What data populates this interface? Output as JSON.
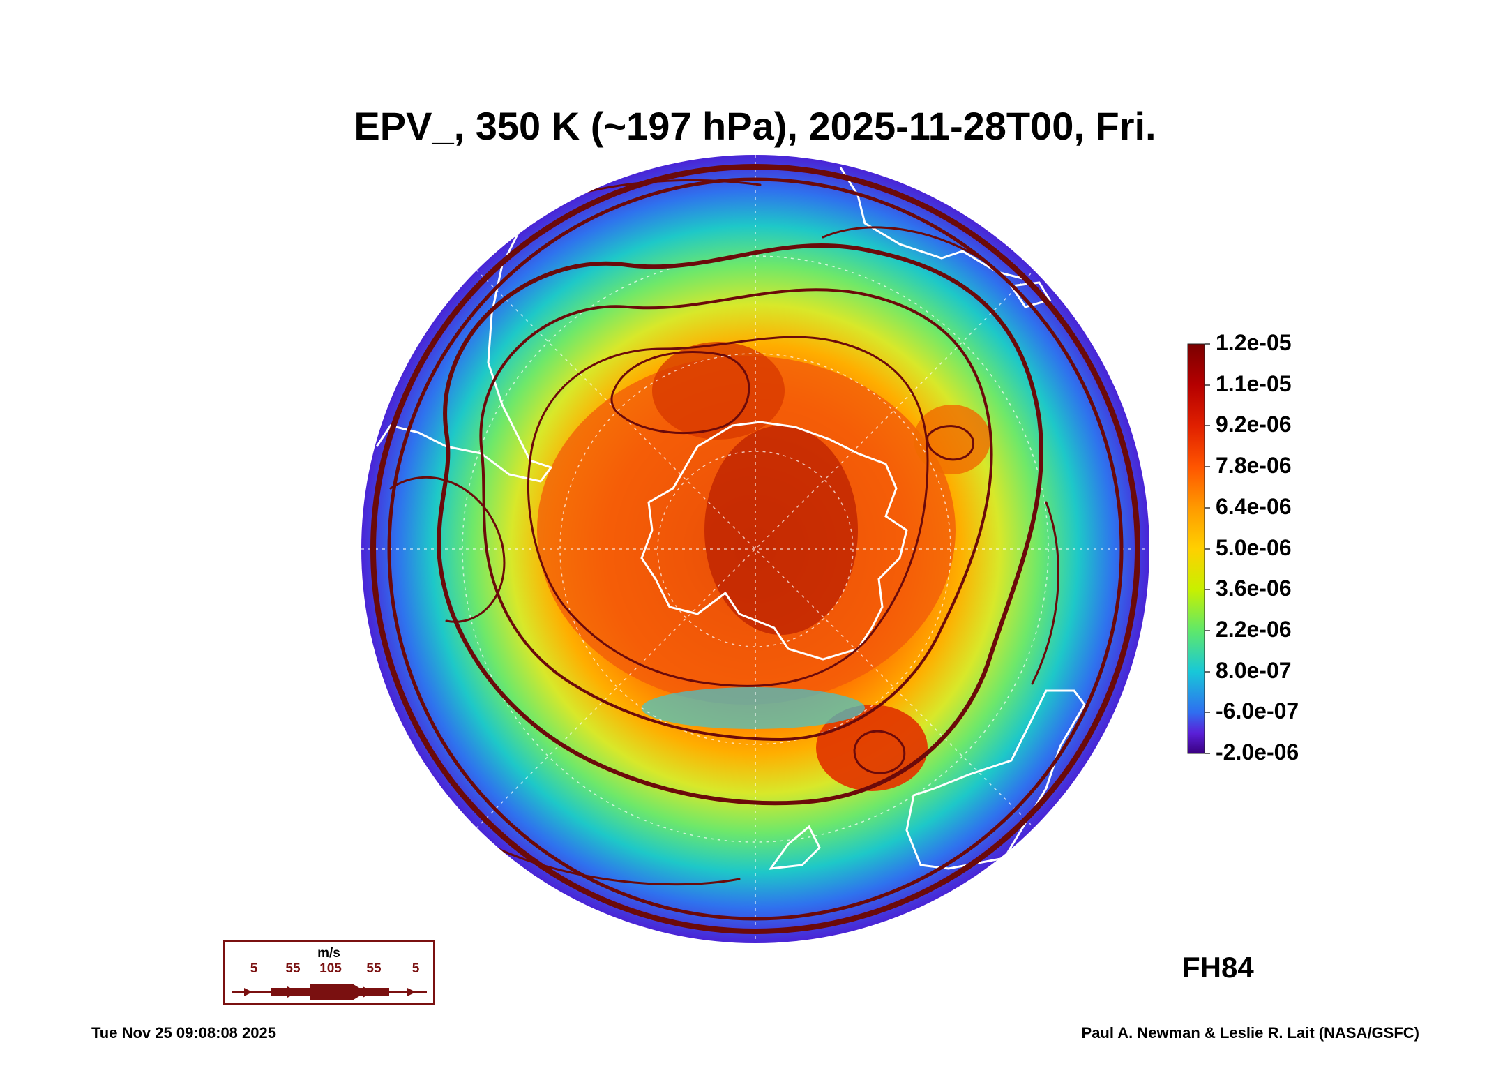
{
  "title": "EPV_, 350 K (~197 hPa), 2025-11-28T00, Fri.",
  "colorbar": {
    "ticks": [
      "1.2e-05",
      "1.1e-05",
      "9.2e-06",
      "7.8e-06",
      "6.4e-06",
      "5.0e-06",
      "3.6e-06",
      "2.2e-06",
      "8.0e-07",
      "-6.0e-07",
      "-2.0e-06"
    ],
    "colors": [
      "#7a0000",
      "#b50000",
      "#e02000",
      "#ff5500",
      "#ff9a00",
      "#ffd000",
      "#c8f000",
      "#5fe86a",
      "#18c8d8",
      "#2f6ef0",
      "#5a20d8",
      "#3a0080"
    ]
  },
  "forecast_hour": "FH84",
  "wind_legend": {
    "unit": "m/s",
    "values": [
      "5",
      "55",
      "105",
      "55",
      "5"
    ]
  },
  "timestamp": "Tue Nov 25 09:08:08 2025",
  "credit": "Paul A. Newman & Leslie R. Lait (NASA/GSFC)",
  "colors": {
    "streamline": "#6b0a0a",
    "coastline": "#ffffff",
    "outer_ring": "#4a24d6"
  }
}
